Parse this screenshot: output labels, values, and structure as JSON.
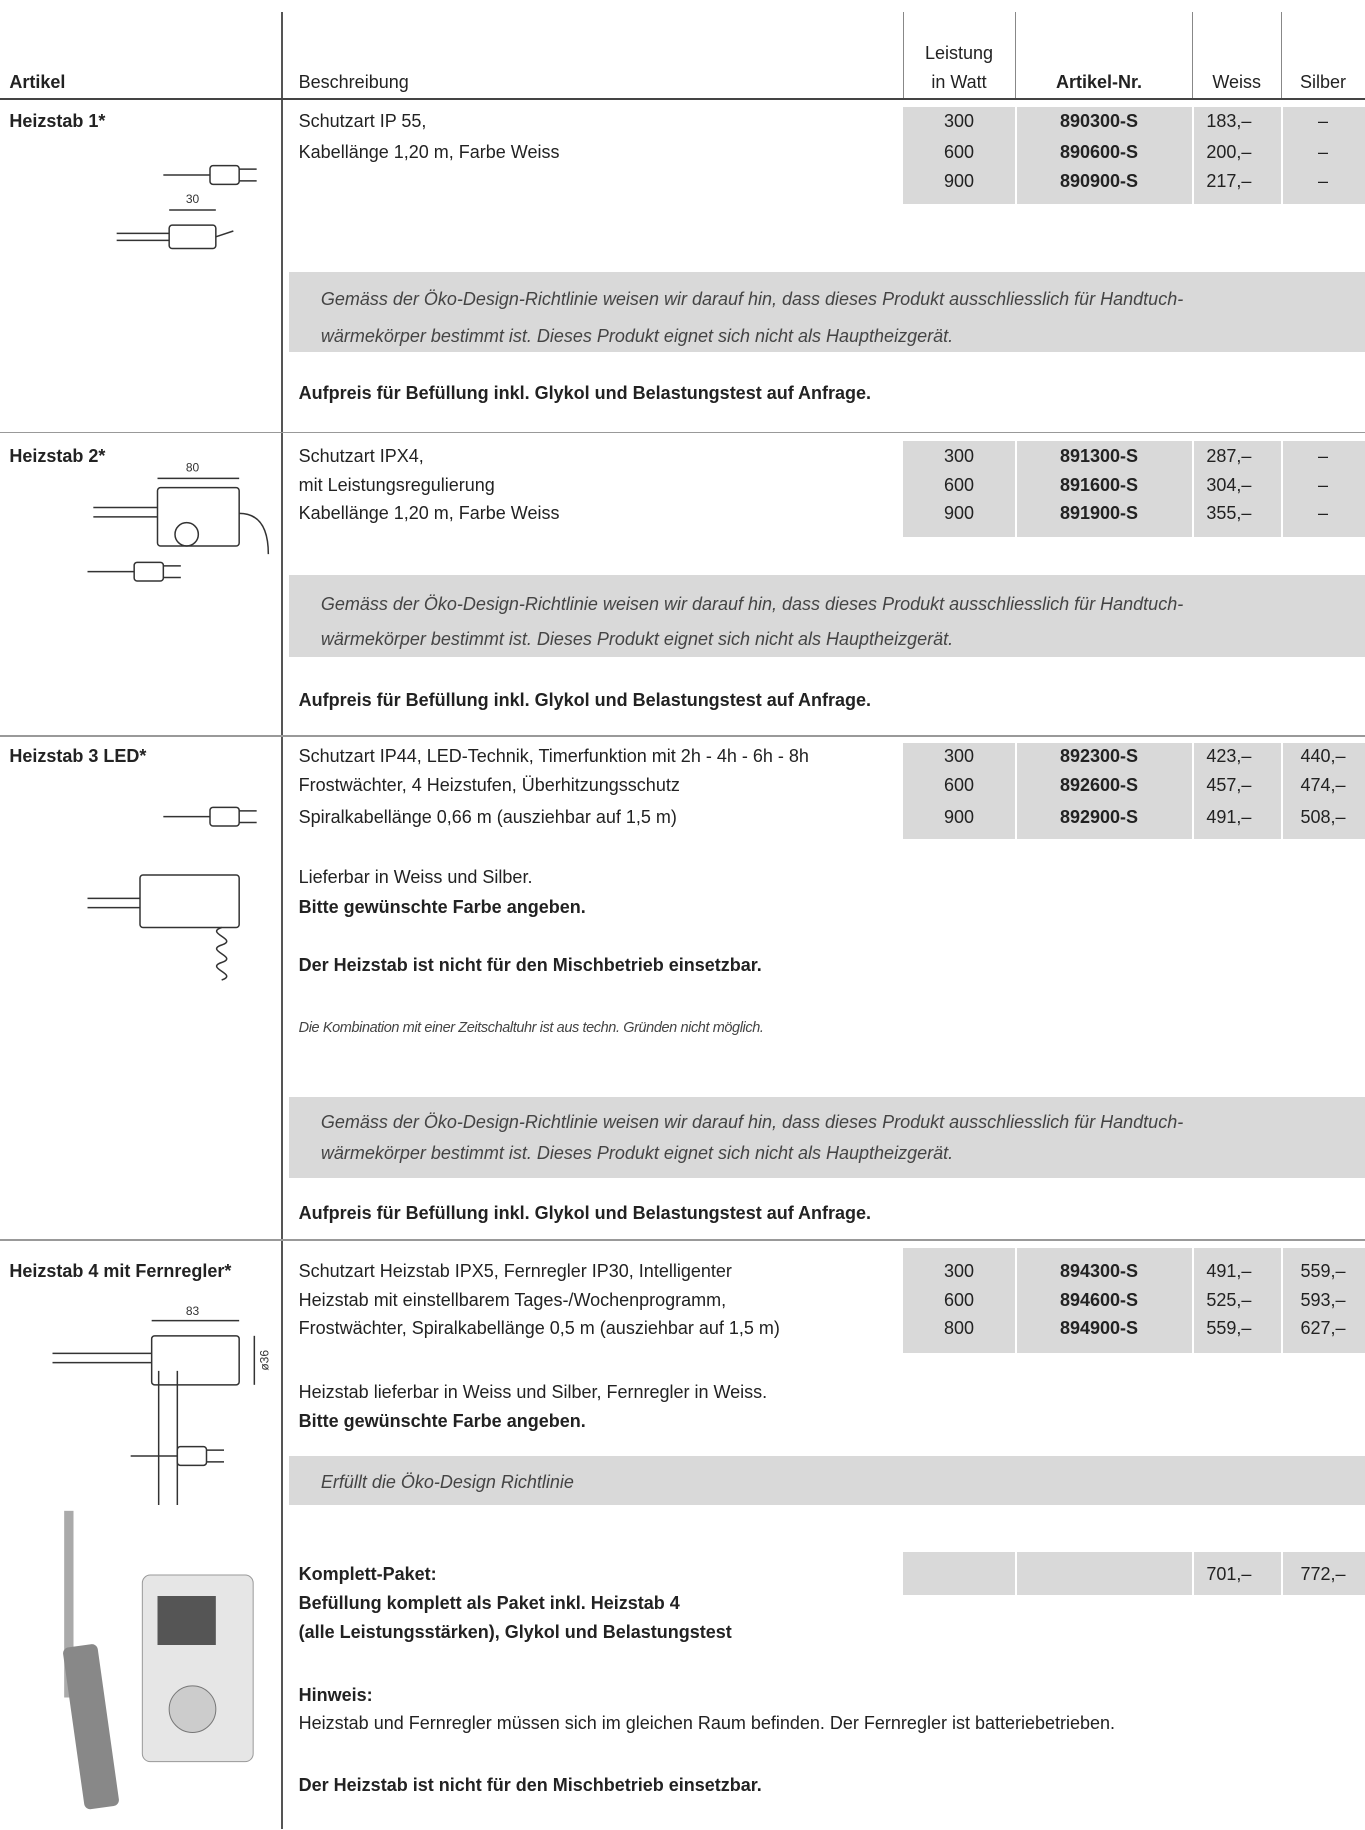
{
  "header": {
    "article": "Artikel",
    "description": "Beschreibung",
    "power": [
      "Leistung",
      "in Watt"
    ],
    "article_no": "Artikel-Nr.",
    "white": "Weiss",
    "silver": "Silber"
  },
  "products": [
    {
      "name": "Heizstab 1*",
      "description": [
        "Schutzart IP 55,",
        "Kabellänge 1,20 m, Farbe Weiss"
      ],
      "rows": [
        [
          300,
          "890300-S",
          "183,–",
          "–"
        ],
        [
          600,
          "890600-S",
          "200,–",
          "–"
        ],
        [
          900,
          "890900-S",
          "217,–",
          "–"
        ]
      ],
      "figure_labels": [
        "30"
      ],
      "notice": [
        "Gemäss der Öko-Design-Richtlinie weisen wir darauf hin, dass dieses Produkt ausschliesslich für Handtuch-",
        "wärmekörper bestimmt ist. Dieses Produkt eignet sich nicht als Hauptheizgerät."
      ],
      "surcharge": "Aufpreis für Befüllung inkl. Glykol und Belastungstest auf Anfrage."
    },
    {
      "name": "Heizstab 2*",
      "description": [
        "Schutzart IPX4,",
        "mit Leistungsregulierung",
        "Kabellänge 1,20 m, Farbe Weiss"
      ],
      "rows": [
        [
          300,
          "891300-S",
          "287,–",
          "–"
        ],
        [
          600,
          "891600-S",
          "304,–",
          "–"
        ],
        [
          900,
          "891900-S",
          "355,–",
          "–"
        ]
      ],
      "figure_labels": [
        "80"
      ],
      "notice": [
        "Gemäss der Öko-Design-Richtlinie weisen wir darauf hin, dass dieses Produkt ausschliesslich für Handtuch-",
        "wärmekörper bestimmt ist. Dieses Produkt eignet sich nicht als Hauptheizgerät."
      ],
      "surcharge": "Aufpreis für Befüllung inkl. Glykol und Belastungstest auf Anfrage."
    },
    {
      "name": "Heizstab 3 LED*",
      "description": [
        "Schutzart IP44, LED-Technik, Timerfunktion mit 2h - 4h - 6h - 8h",
        "Frostwächter, 4 Heizstufen, Überhitzungsschutz",
        "Spiralkabellänge 0,66 m (ausziehbar auf 1,5 m)"
      ],
      "rows": [
        [
          300,
          "892300-S",
          "423,–",
          "440,–"
        ],
        [
          600,
          "892600-S",
          "457,–",
          "474,–"
        ],
        [
          900,
          "892900-S",
          "491,–",
          "508,–"
        ]
      ],
      "availability": [
        "Lieferbar in Weiss und Silber.",
        "Bitte gewünschte Farbe angeben."
      ],
      "mixed": "Der Heizstab ist nicht für den Mischbetrieb einsetzbar.",
      "timer_note": "Die Kombination mit einer Zeitschaltuhr ist aus techn. Gründen nicht möglich.",
      "notice": [
        "Gemäss der Öko-Design-Richtlinie weisen wir darauf hin, dass dieses Produkt ausschliesslich für Handtuch-",
        "wärmekörper bestimmt ist. Dieses Produkt eignet sich nicht als Hauptheizgerät."
      ],
      "surcharge": "Aufpreis für Befüllung inkl. Glykol und Belastungstest auf Anfrage."
    },
    {
      "name": "Heizstab 4 mit Fernregler*",
      "description": [
        "Schutzart Heizstab IPX5, Fernregler IP30, Intelligenter",
        "Heizstab mit einstellbarem Tages-/Wochenprogramm,",
        "Frostwächter, Spiralkabellänge 0,5 m (ausziehbar auf 1,5 m)"
      ],
      "rows": [
        [
          300,
          "894300-S",
          "491,–",
          "559,–"
        ],
        [
          600,
          "894600-S",
          "525,–",
          "593,–"
        ],
        [
          800,
          "894900-S",
          "559,–",
          "627,–"
        ]
      ],
      "figure_labels": [
        "83",
        "ø36"
      ],
      "availability": [
        "Heizstab lieferbar in Weiss und Silber, Fernregler in Weiss.",
        "Bitte gewünschte Farbe angeben."
      ],
      "eco": "Erfüllt die Öko-Design Richtlinie",
      "package": {
        "title": "Komplett-Paket:",
        "lines": [
          "Befüllung komplett als Paket inkl. Heizstab 4",
          "(alle Leistungsstärken), Glykol und Belastungstest"
        ],
        "white": "701,–",
        "silver": "772,–"
      },
      "hint": {
        "title": "Hinweis:",
        "text": "Heizstab und Fernregler müssen sich im gleichen Raum befinden. Der Fernregler ist batteriebetrieben."
      },
      "mixed": "Der Heizstab ist nicht für den Mischbetrieb einsetzbar."
    }
  ]
}
